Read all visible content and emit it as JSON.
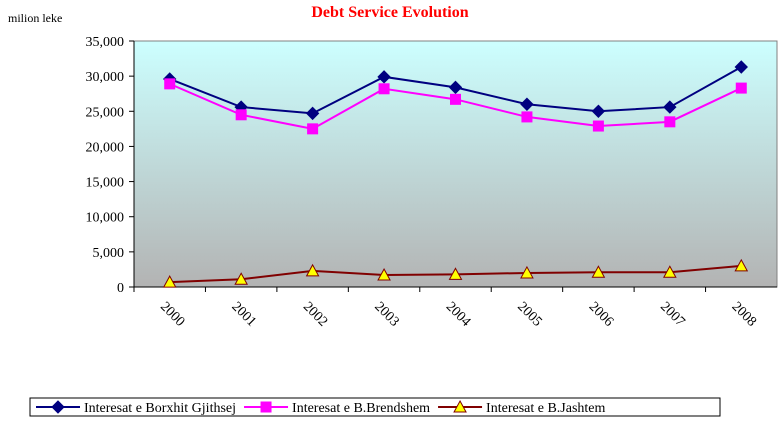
{
  "chart_data": {
    "type": "line",
    "title": "Debt Service Evolution",
    "y_label": "milion leke",
    "categories": [
      "2000",
      "2001",
      "2002",
      "2003",
      "2004",
      "2005",
      "2006",
      "2007",
      "2008"
    ],
    "series": [
      {
        "name": "Interesat e Borxhit Gjithsej",
        "color": "#000080",
        "marker": "diamond",
        "marker_fill": "#000080",
        "values": [
          29600,
          25600,
          24700,
          29900,
          28400,
          26000,
          25000,
          25600,
          31300
        ]
      },
      {
        "name": "Interesat e B.Brendshem",
        "color": "#ff00ff",
        "marker": "square",
        "marker_fill": "#ff00ff",
        "values": [
          28900,
          24500,
          22500,
          28200,
          26700,
          24200,
          22900,
          23500,
          28300
        ]
      },
      {
        "name": "Interesat e B.Jashtem",
        "color": "#800000",
        "marker": "triangle",
        "marker_fill": "#ffff00",
        "values": [
          700,
          1100,
          2300,
          1700,
          1800,
          2000,
          2100,
          2100,
          3000
        ]
      }
    ],
    "ylim": [
      0,
      35000
    ],
    "yticks": [
      0,
      {
        "value": 5000,
        "label": "5,000"
      },
      {
        "value": 10000,
        "label": "10,000"
      },
      {
        "value": 15000,
        "label": "15,000"
      },
      {
        "value": 20000,
        "label": "20,000"
      },
      {
        "value": 25000,
        "label": "25,000"
      },
      {
        "value": 30000,
        "label": "30,000"
      },
      {
        "value": 35000,
        "label": "35,000"
      }
    ],
    "legend": "bottom"
  }
}
